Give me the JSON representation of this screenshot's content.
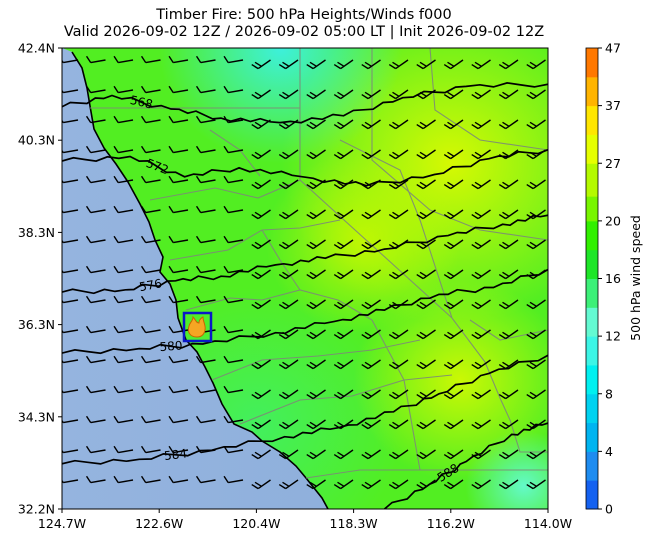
{
  "title_line1": "Timber Fire: 500 hPa Heights/Winds f000",
  "title_line2": "Valid 2026-09-02 12Z / 2026-09-02 05:00 LT | Init 2026-09-02 12Z",
  "chart_data": {
    "type": "heatmap",
    "variable": "500 hPa wind speed",
    "colorbar_label": "500 hPa wind speed",
    "x_axis": {
      "ticks": [
        "124.7W",
        "122.6W",
        "120.4W",
        "118.3W",
        "116.2W",
        "114.0W"
      ],
      "range": [
        -124.7,
        -114.0
      ]
    },
    "y_axis": {
      "ticks": [
        "42.4N",
        "40.3N",
        "38.3N",
        "36.3N",
        "34.3N",
        "32.2N"
      ],
      "range": [
        32.2,
        42.4
      ]
    },
    "colorbar_levels": [
      0,
      2,
      4,
      6,
      8,
      10,
      12,
      14,
      16,
      18,
      20,
      23,
      27,
      32,
      37,
      42,
      47
    ],
    "colorbar_ticks": [
      "0",
      "4",
      "8",
      "12",
      "16",
      "20",
      "27",
      "37",
      "47"
    ],
    "colorbar_colors": [
      "#1461f0",
      "#1e8cf0",
      "#00b4f0",
      "#00d2f0",
      "#00f0f0",
      "#3cf5e6",
      "#64fad2",
      "#3cf078",
      "#1ee628",
      "#32f000",
      "#78f500",
      "#b4fa00",
      "#e6ff00",
      "#ffe600",
      "#ffb400",
      "#ff7800",
      "#f52800"
    ],
    "height_contours": [
      {
        "label": "568",
        "points": [
          [
            -124.7,
            41.1
          ],
          [
            -123.6,
            41.35
          ],
          [
            -122.3,
            41.05
          ],
          [
            -121.2,
            40.85
          ],
          [
            -119.9,
            40.75
          ],
          [
            -118.5,
            40.9
          ],
          [
            -117.2,
            41.3
          ],
          [
            -115.8,
            41.55
          ],
          [
            -114.0,
            41.6
          ]
        ]
      },
      {
        "label": "572",
        "points": [
          [
            -124.7,
            39.9
          ],
          [
            -123.2,
            40.0
          ],
          [
            -122.0,
            39.55
          ],
          [
            -120.8,
            39.75
          ],
          [
            -119.4,
            39.55
          ],
          [
            -118.0,
            39.35
          ],
          [
            -116.5,
            39.6
          ],
          [
            -115.3,
            39.95
          ],
          [
            -114.0,
            40.15
          ]
        ]
      },
      {
        "label": "576",
        "points": [
          [
            -124.7,
            37.0
          ],
          [
            -123.3,
            37.05
          ],
          [
            -122.2,
            37.25
          ],
          [
            -121.2,
            37.35
          ],
          [
            -120.0,
            37.6
          ],
          [
            -118.9,
            37.75
          ],
          [
            -117.6,
            37.95
          ],
          [
            -116.2,
            38.25
          ],
          [
            -115.0,
            38.5
          ],
          [
            -114.0,
            38.7
          ]
        ]
      },
      {
        "label": "580",
        "points": [
          [
            -124.7,
            35.65
          ],
          [
            -123.0,
            35.75
          ],
          [
            -121.6,
            35.85
          ],
          [
            -120.0,
            36.1
          ],
          [
            -118.7,
            36.35
          ],
          [
            -117.6,
            36.6
          ],
          [
            -116.4,
            36.95
          ],
          [
            -115.2,
            37.1
          ],
          [
            -114.0,
            37.5
          ]
        ]
      },
      {
        "label": "584",
        "points": [
          [
            -124.7,
            33.2
          ],
          [
            -123.0,
            33.3
          ],
          [
            -121.4,
            33.5
          ],
          [
            -119.8,
            33.8
          ],
          [
            -118.6,
            34.0
          ],
          [
            -117.4,
            34.35
          ],
          [
            -116.4,
            34.75
          ],
          [
            -115.3,
            35.2
          ],
          [
            -114.0,
            35.6
          ]
        ]
      },
      {
        "label": "588",
        "points": [
          [
            -117.6,
            32.2
          ],
          [
            -116.6,
            32.75
          ],
          [
            -115.8,
            33.25
          ],
          [
            -114.8,
            33.85
          ],
          [
            -114.0,
            34.1
          ]
        ]
      }
    ],
    "wind_barbs": "southwesterly to westerly flow, 10-30 knots across domain",
    "fire_marker": {
      "name": "Timber Fire",
      "lon": -121.4,
      "lat": 36.2
    },
    "grid": false
  }
}
